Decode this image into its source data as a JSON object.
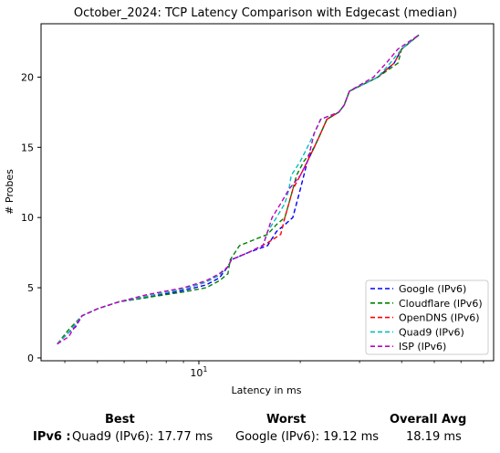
{
  "chart_data": {
    "type": "line",
    "title": "October_2024: TCP Latency Comparison with Edgecast (median)",
    "xlabel": "Latency in ms",
    "ylabel": "# Probes",
    "xscale": "log",
    "xlim": [
      3.4,
      75
    ],
    "ylim": [
      -0.2,
      23.8
    ],
    "yticks": [
      0,
      5,
      10,
      15,
      20
    ],
    "xticks_major": [
      10
    ],
    "xtick_labels": [
      "10^1"
    ],
    "grid": false,
    "legend_position": "lower-right",
    "line_style": "dashed",
    "series": [
      {
        "name": "Google (IPv6)",
        "color": "#0000ff",
        "points": [
          [
            3.8,
            1
          ],
          [
            4.1,
            1.8
          ],
          [
            4.3,
            2.2
          ],
          [
            4.5,
            3
          ],
          [
            5,
            3.5
          ],
          [
            5.8,
            4
          ],
          [
            7,
            4.3
          ],
          [
            9,
            4.8
          ],
          [
            10.5,
            5.2
          ],
          [
            11.5,
            5.7
          ],
          [
            12.2,
            6.5
          ],
          [
            12.5,
            7
          ],
          [
            14,
            7.5
          ],
          [
            16,
            8
          ],
          [
            17,
            9
          ],
          [
            18,
            9.5
          ],
          [
            19,
            10
          ],
          [
            19.5,
            11
          ],
          [
            20,
            12
          ],
          [
            21,
            14
          ],
          [
            22,
            15
          ],
          [
            23,
            16
          ],
          [
            24,
            17
          ],
          [
            26,
            17.5
          ],
          [
            27,
            18
          ],
          [
            28,
            19
          ],
          [
            34,
            20
          ],
          [
            38,
            21
          ],
          [
            40,
            22
          ],
          [
            45,
            23
          ]
        ]
      },
      {
        "name": "Cloudflare (IPv6)",
        "color": "#008000",
        "points": [
          [
            3.8,
            1
          ],
          [
            4.1,
            2
          ],
          [
            4.5,
            3
          ],
          [
            5,
            3.5
          ],
          [
            5.8,
            4
          ],
          [
            7,
            4.3
          ],
          [
            9,
            4.7
          ],
          [
            10.5,
            5
          ],
          [
            11.5,
            5.5
          ],
          [
            12.2,
            6
          ],
          [
            12.4,
            7
          ],
          [
            13.2,
            8
          ],
          [
            16,
            8.8
          ],
          [
            17,
            9.5
          ],
          [
            18,
            10
          ],
          [
            18.5,
            11
          ],
          [
            19,
            12
          ],
          [
            19.5,
            13
          ],
          [
            20.5,
            14
          ],
          [
            22,
            15
          ],
          [
            23,
            16
          ],
          [
            24,
            17
          ],
          [
            26,
            17.5
          ],
          [
            27,
            18
          ],
          [
            28,
            19
          ],
          [
            34,
            20
          ],
          [
            39,
            21
          ],
          [
            40,
            22
          ],
          [
            45,
            23
          ]
        ]
      },
      {
        "name": "OpenDNS (IPv6)",
        "color": "#ff0000",
        "points": [
          [
            3.8,
            1
          ],
          [
            4.1,
            1.8
          ],
          [
            4.5,
            3
          ],
          [
            5,
            3.5
          ],
          [
            5.8,
            4
          ],
          [
            7,
            4.4
          ],
          [
            9,
            4.9
          ],
          [
            10.5,
            5.4
          ],
          [
            11.5,
            5.9
          ],
          [
            12.2,
            6.5
          ],
          [
            12.5,
            7
          ],
          [
            14,
            7.5
          ],
          [
            16,
            8.2
          ],
          [
            17.5,
            8.8
          ],
          [
            18,
            10
          ],
          [
            18.5,
            11
          ],
          [
            19,
            12
          ],
          [
            20,
            13
          ],
          [
            21,
            14
          ],
          [
            22,
            15
          ],
          [
            23,
            16
          ],
          [
            24,
            17
          ],
          [
            26,
            17.5
          ],
          [
            27,
            18
          ],
          [
            28,
            19
          ],
          [
            34,
            20
          ],
          [
            38,
            21
          ],
          [
            40,
            22
          ],
          [
            45,
            23
          ]
        ]
      },
      {
        "name": "Quad9 (IPv6)",
        "color": "#00bfbf",
        "points": [
          [
            3.8,
            1
          ],
          [
            4.1,
            1.8
          ],
          [
            4.5,
            3
          ],
          [
            5,
            3.5
          ],
          [
            5.8,
            4
          ],
          [
            7,
            4.4
          ],
          [
            9,
            4.9
          ],
          [
            10.5,
            5.4
          ],
          [
            11.5,
            5.9
          ],
          [
            12.2,
            6.5
          ],
          [
            12.5,
            7
          ],
          [
            14,
            7.5
          ],
          [
            15.5,
            8
          ],
          [
            16,
            9
          ],
          [
            17,
            10
          ],
          [
            18,
            11
          ],
          [
            18.5,
            12
          ],
          [
            18.8,
            13
          ],
          [
            20,
            14
          ],
          [
            21,
            15
          ],
          [
            22,
            16
          ],
          [
            23,
            17
          ],
          [
            26,
            17.5
          ],
          [
            27,
            18
          ],
          [
            28,
            19
          ],
          [
            34,
            20
          ],
          [
            37,
            21
          ],
          [
            40,
            22
          ],
          [
            45,
            23
          ]
        ]
      },
      {
        "name": "ISP (IPv6)",
        "color": "#bf00bf",
        "points": [
          [
            3.8,
            1
          ],
          [
            4.1,
            1.5
          ],
          [
            4.5,
            3
          ],
          [
            5,
            3.5
          ],
          [
            5.8,
            4
          ],
          [
            7,
            4.5
          ],
          [
            9,
            5
          ],
          [
            10.5,
            5.5
          ],
          [
            11.5,
            6
          ],
          [
            12.2,
            6.5
          ],
          [
            12.5,
            7
          ],
          [
            14,
            7.5
          ],
          [
            15.5,
            8
          ],
          [
            16,
            9
          ],
          [
            16.5,
            10
          ],
          [
            17.5,
            11
          ],
          [
            18.5,
            12
          ],
          [
            20,
            13
          ],
          [
            21,
            14
          ],
          [
            21.5,
            15
          ],
          [
            22,
            16
          ],
          [
            23,
            17
          ],
          [
            26,
            17.5
          ],
          [
            27,
            18
          ],
          [
            28,
            19
          ],
          [
            33,
            20
          ],
          [
            36,
            21
          ],
          [
            39,
            22
          ],
          [
            45,
            23
          ]
        ]
      }
    ]
  },
  "stats": {
    "best_header": "Best",
    "worst_header": "Worst",
    "avg_header": "Overall Avg",
    "row_label": "IPv6 :",
    "best_value": "Quad9 (IPv6): 17.77 ms",
    "worst_value": "Google (IPv6): 19.12 ms",
    "avg_value": "18.19 ms"
  }
}
